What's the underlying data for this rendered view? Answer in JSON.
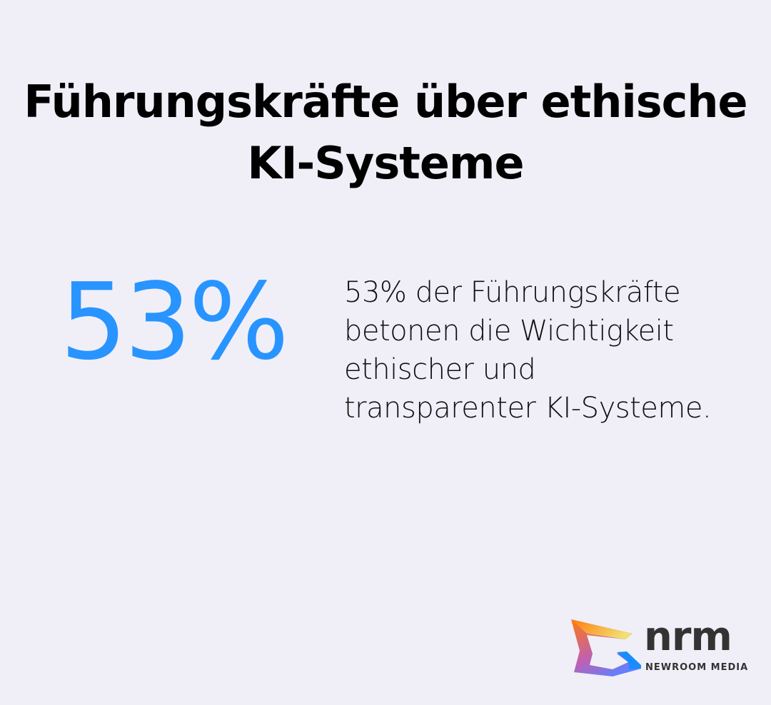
{
  "title": "Führungskräfte über ethische KI-Systeme",
  "stat": {
    "value": "53%",
    "description": "53% der Führungskräfte betonen die Wichtigkeit ethischer und transparenter KI-Systeme.",
    "color": "#2894ff"
  },
  "logo": {
    "name": "nrm",
    "tagline": "NEWROOM MEDIA"
  }
}
